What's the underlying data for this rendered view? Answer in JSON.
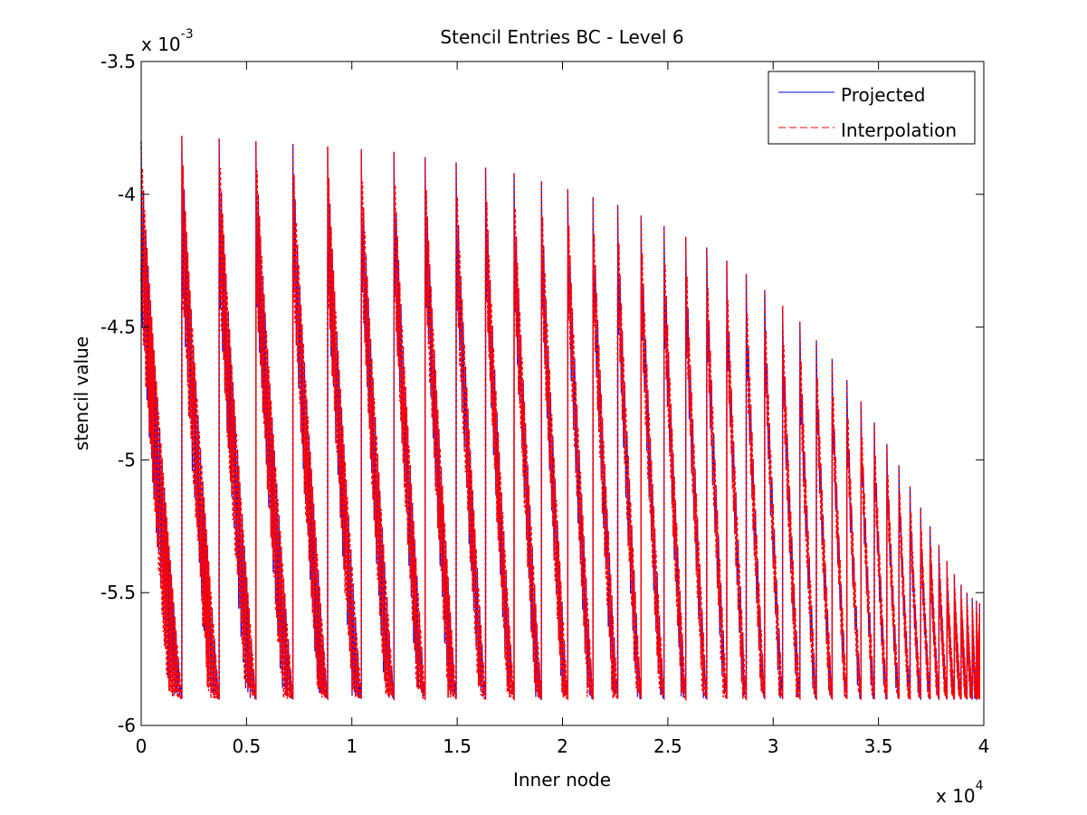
{
  "chart_data": {
    "type": "line",
    "title": "Stencil Entries BC - Level 6",
    "xlabel": "Inner node",
    "ylabel": "stencil value",
    "xlim": [
      0,
      40000
    ],
    "ylim": [
      -0.006,
      -0.0035
    ],
    "x_exponent_label": "x 10",
    "x_exponent": "4",
    "y_exponent_label": "x 10",
    "y_exponent": "-3",
    "x_ticks": [
      {
        "value": 0,
        "label": "0"
      },
      {
        "value": 5000,
        "label": "0.5"
      },
      {
        "value": 10000,
        "label": "1"
      },
      {
        "value": 15000,
        "label": "1.5"
      },
      {
        "value": 20000,
        "label": "2"
      },
      {
        "value": 25000,
        "label": "2.5"
      },
      {
        "value": 30000,
        "label": "3"
      },
      {
        "value": 35000,
        "label": "3.5"
      },
      {
        "value": 40000,
        "label": "4"
      }
    ],
    "y_ticks": [
      {
        "value": -0.0035,
        "label": "-3.5"
      },
      {
        "value": -0.004,
        "label": "-4"
      },
      {
        "value": -0.0045,
        "label": "-4.5"
      },
      {
        "value": -0.005,
        "label": "-5"
      },
      {
        "value": -0.0055,
        "label": "-5.5"
      },
      {
        "value": -0.006,
        "label": "-6"
      }
    ],
    "grid": false,
    "legend_position": "top-right",
    "segment_starts": [
      0,
      1930,
      3700,
      5450,
      7200,
      8850,
      10450,
      12000,
      13480,
      14950,
      16350,
      17700,
      19000,
      20250,
      21450,
      22620,
      23730,
      24820,
      25850,
      26850,
      27800,
      28720,
      29600,
      30450,
      31270,
      32050,
      32800,
      33500,
      34170,
      34800,
      35400,
      35970,
      36500,
      37000,
      37450,
      37870,
      38250,
      38600,
      38920,
      39200,
      39450,
      39650,
      39800
    ],
    "segment_end_x": 39670,
    "segment_start_values": [
      -0.0038,
      -0.00378,
      -0.00379,
      -0.0038,
      -0.00381,
      -0.00382,
      -0.00383,
      -0.00384,
      -0.00386,
      -0.00388,
      -0.0039,
      -0.00392,
      -0.00395,
      -0.00398,
      -0.00401,
      -0.00404,
      -0.00408,
      -0.00412,
      -0.00416,
      -0.0042,
      -0.00425,
      -0.0043,
      -0.00436,
      -0.00442,
      -0.00448,
      -0.00455,
      -0.00462,
      -0.0047,
      -0.00478,
      -0.00486,
      -0.00494,
      -0.00502,
      -0.0051,
      -0.00518,
      -0.00525,
      -0.00532,
      -0.00538,
      -0.00543,
      -0.00547,
      -0.0055,
      -0.00552,
      -0.00553,
      -0.00554
    ],
    "segment_end_value": -0.0059,
    "series": [
      {
        "name": "Projected",
        "color": "#0000ff",
        "style": "solid"
      },
      {
        "name": "Interpolation",
        "color": "#ff0000",
        "style": "dashed"
      }
    ]
  }
}
